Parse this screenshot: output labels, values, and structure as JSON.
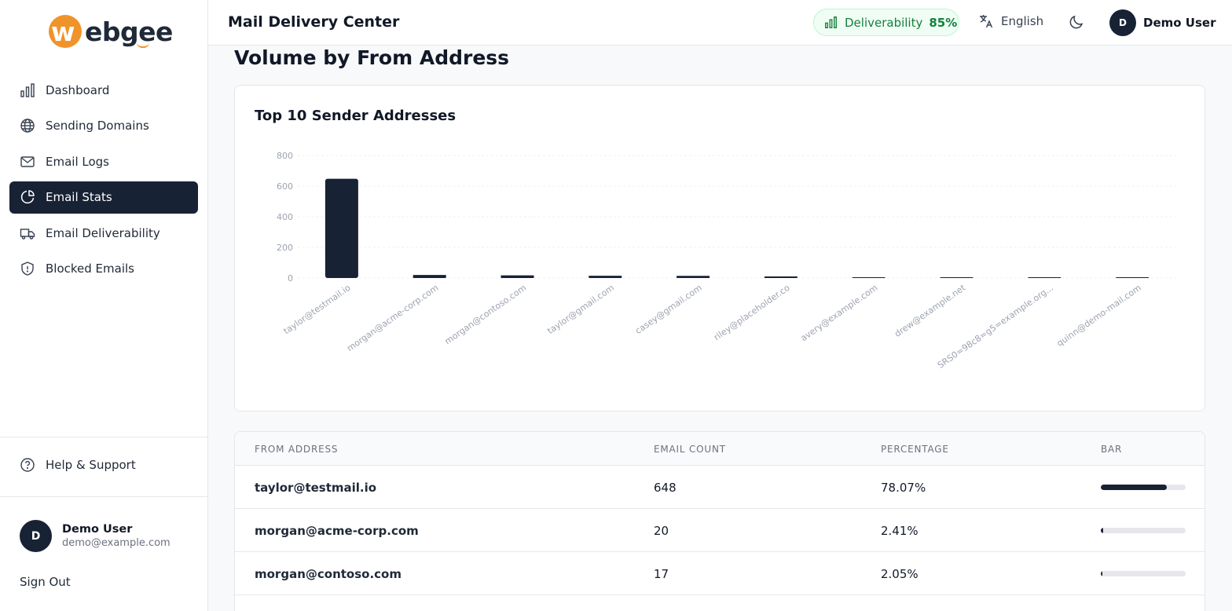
{
  "brand": {
    "logo_text": "webgee",
    "accent": "#f0932b"
  },
  "sidebar": {
    "items": [
      {
        "label": "Dashboard",
        "icon": "bar-chart-icon",
        "active": false
      },
      {
        "label": "Sending Domains",
        "icon": "globe-icon",
        "active": false
      },
      {
        "label": "Email Logs",
        "icon": "mail-icon",
        "active": false
      },
      {
        "label": "Email Stats",
        "icon": "pie-chart-icon",
        "active": true
      },
      {
        "label": "Email Deliverability",
        "icon": "truck-icon",
        "active": false
      },
      {
        "label": "Blocked Emails",
        "icon": "shield-icon",
        "active": false
      }
    ],
    "help_label": "Help & Support",
    "user": {
      "initial": "D",
      "name": "Demo User",
      "email": "demo@example.com"
    },
    "signout_label": "Sign Out"
  },
  "header": {
    "title": "Mail Delivery Center",
    "deliverability_label": "Deliverability",
    "deliverability_value": "85%",
    "language": "English",
    "user": {
      "initial": "D",
      "name": "Demo User"
    }
  },
  "main": {
    "section_title": "Volume by From Address",
    "chart_title": "Top 10 Sender Addresses"
  },
  "chart_data": {
    "type": "bar",
    "title": "Top 10 Sender Addresses",
    "categories": [
      "taylor@testmail.io",
      "morgan@acme-corp.com",
      "morgan@contoso.com",
      "taylor@gmail.com",
      "casey@gmail.com",
      "riley@placeholder.co",
      "avery@example.com",
      "drew@example.net",
      "SRS0=98c8=g5=example.org...",
      "quinn@demo-mail.com"
    ],
    "values": [
      648,
      20,
      17,
      15,
      14,
      10,
      5,
      3,
      2,
      1
    ],
    "ylim": [
      0,
      800
    ],
    "yticks": [
      0,
      200,
      400,
      600,
      800
    ],
    "grid": true,
    "bar_color": "#182235"
  },
  "table": {
    "headers": [
      "From Address",
      "Email Count",
      "Percentage",
      "Bar"
    ],
    "rows": [
      {
        "address": "taylor@testmail.io",
        "count": "648",
        "percentage": "78.07%",
        "fraction": 0.7807
      },
      {
        "address": "morgan@acme-corp.com",
        "count": "20",
        "percentage": "2.41%",
        "fraction": 0.0241
      },
      {
        "address": "morgan@contoso.com",
        "count": "17",
        "percentage": "2.05%",
        "fraction": 0.0205
      }
    ]
  }
}
